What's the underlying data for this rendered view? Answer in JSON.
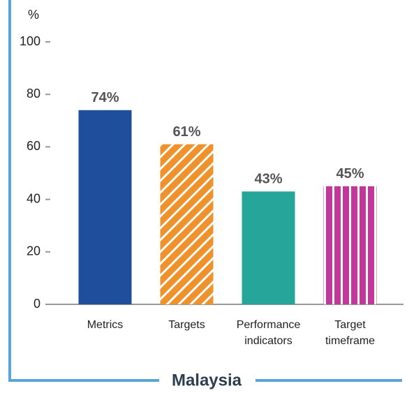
{
  "chart_data": {
    "type": "bar",
    "title": "Malaysia",
    "ylabel": "%",
    "categories": [
      "Metrics",
      "Targets",
      "Performance indicators",
      "Target timeframe"
    ],
    "values": [
      74,
      61,
      43,
      45
    ],
    "value_labels": [
      "74%",
      "61%",
      "43%",
      "45%"
    ],
    "colors": [
      "#1f4e9c",
      "#f0922b",
      "#26a69a",
      "#c2389a"
    ],
    "patterns": [
      "solid",
      "diagonal",
      "solid",
      "vertical"
    ],
    "ylim": [
      0,
      100
    ],
    "yticks": [
      0,
      20,
      40,
      60,
      80,
      100
    ],
    "grid": false
  }
}
